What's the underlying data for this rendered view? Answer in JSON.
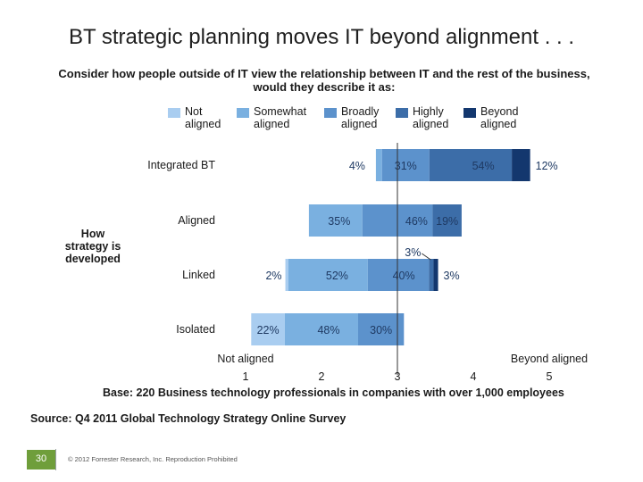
{
  "slide": {
    "title": "BT strategic planning moves IT beyond alignment . . .",
    "question_line1": "Consider how people outside of IT view the relationship between IT and the rest of the business,",
    "question_line2": "would they describe it as:",
    "side_label_line1": "How",
    "side_label_line2": "strategy is",
    "side_label_line3": "developed",
    "base_note": "Base: 220 Business technology professionals in companies with over 1,000 employees",
    "source": "Source: Q4 2011 Global Technology Strategy Online Survey",
    "slide_number": "30",
    "copyright": "© 2012 Forrester Research, Inc. Reproduction Prohibited"
  },
  "legend": [
    {
      "line1": "Not",
      "line2": "aligned",
      "color": "#a9cdf0"
    },
    {
      "line1": "Somewhat",
      "line2": "aligned",
      "color": "#7ab0e0"
    },
    {
      "line1": "Broadly",
      "line2": "aligned",
      "color": "#5c92cc"
    },
    {
      "line1": "Highly",
      "line2": "aligned",
      "color": "#3c6da8"
    },
    {
      "line1": "Beyond",
      "line2": "aligned",
      "color": "#13376e"
    }
  ],
  "chart_data": {
    "type": "bar",
    "orientation": "horizontal",
    "stacked": true,
    "categories": [
      "Integrated BT",
      "Aligned",
      "Linked",
      "Isolated"
    ],
    "series": [
      {
        "name": "Not aligned",
        "values": [
          0,
          0,
          2,
          22
        ],
        "labels": [
          "",
          "",
          "2%",
          "22%"
        ]
      },
      {
        "name": "Somewhat aligned",
        "values": [
          4,
          35,
          52,
          48
        ],
        "labels": [
          "4%",
          "35%",
          "52%",
          "48%"
        ]
      },
      {
        "name": "Broadly aligned",
        "values": [
          31,
          46,
          40,
          30
        ],
        "labels": [
          "31%",
          "46%",
          "40%",
          "30%"
        ]
      },
      {
        "name": "Highly aligned",
        "values": [
          54,
          19,
          3,
          0
        ],
        "labels": [
          "54%",
          "19%",
          "3%",
          ""
        ]
      },
      {
        "name": "Beyond aligned",
        "values": [
          12,
          0,
          3,
          0
        ],
        "labels": [
          "12%",
          "",
          "3%",
          ""
        ]
      }
    ],
    "x_axis": {
      "ticks": [
        1,
        2,
        3,
        4,
        5
      ],
      "tick_labels": [
        "1",
        "2",
        "3",
        "4",
        "5"
      ],
      "left_label": "Not aligned",
      "right_label": "Beyond aligned",
      "reference_line": 3
    }
  }
}
